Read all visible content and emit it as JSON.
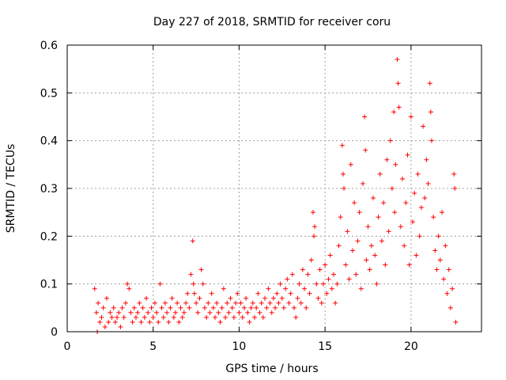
{
  "chart_data": {
    "type": "scatter",
    "title": "Day 227 of 2018, SRMTID for receiver coru",
    "xlabel": "GPS time / hours",
    "ylabel": "SRMTID / TECUs",
    "xlim": [
      0,
      24.1
    ],
    "ylim": [
      0,
      0.6
    ],
    "x_ticks": [
      0,
      5,
      10,
      15,
      20
    ],
    "x_tick_labels": [
      "0",
      "5",
      "10",
      "15",
      "20"
    ],
    "y_ticks": [
      0,
      0.1,
      0.2,
      0.3,
      0.4,
      0.5,
      0.6
    ],
    "y_tick_labels": [
      "0",
      "0.1",
      "0.2",
      "0.3",
      "0.4",
      "0.5",
      "0.6"
    ],
    "grid": true,
    "marker": "+",
    "series_color": "#ff0000",
    "x_range_of_data_hours": [
      1.6,
      22.7
    ],
    "envelope_description": "SRMTID rises from ~0.02–0.08 TECU before 13 h to 0.1–0.58 TECU after 15 h",
    "series": [
      {
        "name": "coru",
        "points": [
          [
            1.6,
            0.09
          ],
          [
            1.7,
            0.04
          ],
          [
            1.75,
            0.0
          ],
          [
            1.8,
            0.06
          ],
          [
            1.9,
            0.02
          ],
          [
            2.0,
            0.03
          ],
          [
            2.1,
            0.05
          ],
          [
            2.2,
            0.01
          ],
          [
            2.3,
            0.07
          ],
          [
            2.4,
            0.02
          ],
          [
            2.5,
            0.04
          ],
          [
            2.6,
            0.03
          ],
          [
            2.7,
            0.05
          ],
          [
            2.8,
            0.02
          ],
          [
            2.9,
            0.03
          ],
          [
            3.0,
            0.04
          ],
          [
            3.1,
            0.01
          ],
          [
            3.2,
            0.05
          ],
          [
            3.3,
            0.03
          ],
          [
            3.4,
            0.06
          ],
          [
            3.5,
            0.1
          ],
          [
            3.6,
            0.09
          ],
          [
            3.7,
            0.04
          ],
          [
            3.8,
            0.02
          ],
          [
            3.9,
            0.05
          ],
          [
            4.0,
            0.03
          ],
          [
            4.1,
            0.04
          ],
          [
            4.2,
            0.06
          ],
          [
            4.3,
            0.02
          ],
          [
            4.4,
            0.05
          ],
          [
            4.5,
            0.03
          ],
          [
            4.6,
            0.07
          ],
          [
            4.7,
            0.04
          ],
          [
            4.8,
            0.02
          ],
          [
            4.9,
            0.05
          ],
          [
            5.0,
            0.03
          ],
          [
            5.1,
            0.06
          ],
          [
            5.2,
            0.04
          ],
          [
            5.3,
            0.02
          ],
          [
            5.4,
            0.1
          ],
          [
            5.5,
            0.05
          ],
          [
            5.6,
            0.03
          ],
          [
            5.7,
            0.06
          ],
          [
            5.8,
            0.04
          ],
          [
            5.9,
            0.02
          ],
          [
            6.0,
            0.05
          ],
          [
            6.1,
            0.07
          ],
          [
            6.2,
            0.03
          ],
          [
            6.3,
            0.04
          ],
          [
            6.4,
            0.06
          ],
          [
            6.5,
            0.02
          ],
          [
            6.6,
            0.05
          ],
          [
            6.7,
            0.03
          ],
          [
            6.8,
            0.04
          ],
          [
            6.9,
            0.06
          ],
          [
            7.0,
            0.08
          ],
          [
            7.1,
            0.05
          ],
          [
            7.2,
            0.12
          ],
          [
            7.3,
            0.19
          ],
          [
            7.35,
            0.1
          ],
          [
            7.4,
            0.08
          ],
          [
            7.5,
            0.06
          ],
          [
            7.6,
            0.04
          ],
          [
            7.7,
            0.07
          ],
          [
            7.8,
            0.13
          ],
          [
            7.9,
            0.1
          ],
          [
            8.0,
            0.05
          ],
          [
            8.1,
            0.03
          ],
          [
            8.2,
            0.06
          ],
          [
            8.3,
            0.04
          ],
          [
            8.4,
            0.08
          ],
          [
            8.5,
            0.05
          ],
          [
            8.6,
            0.03
          ],
          [
            8.7,
            0.06
          ],
          [
            8.8,
            0.04
          ],
          [
            8.9,
            0.02
          ],
          [
            9.0,
            0.05
          ],
          [
            9.1,
            0.09
          ],
          [
            9.2,
            0.03
          ],
          [
            9.3,
            0.06
          ],
          [
            9.4,
            0.04
          ],
          [
            9.5,
            0.07
          ],
          [
            9.6,
            0.05
          ],
          [
            9.7,
            0.03
          ],
          [
            9.8,
            0.06
          ],
          [
            9.9,
            0.08
          ],
          [
            10.0,
            0.04
          ],
          [
            10.1,
            0.06
          ],
          [
            10.2,
            0.03
          ],
          [
            10.3,
            0.05
          ],
          [
            10.4,
            0.07
          ],
          [
            10.5,
            0.04
          ],
          [
            10.6,
            0.02
          ],
          [
            10.7,
            0.05
          ],
          [
            10.8,
            0.06
          ],
          [
            10.9,
            0.03
          ],
          [
            11.0,
            0.05
          ],
          [
            11.1,
            0.08
          ],
          [
            11.2,
            0.04
          ],
          [
            11.3,
            0.06
          ],
          [
            11.4,
            0.03
          ],
          [
            11.5,
            0.07
          ],
          [
            11.6,
            0.05
          ],
          [
            11.7,
            0.09
          ],
          [
            11.8,
            0.06
          ],
          [
            11.9,
            0.04
          ],
          [
            12.0,
            0.07
          ],
          [
            12.1,
            0.05
          ],
          [
            12.2,
            0.08
          ],
          [
            12.3,
            0.06
          ],
          [
            12.4,
            0.1
          ],
          [
            12.5,
            0.07
          ],
          [
            12.6,
            0.05
          ],
          [
            12.7,
            0.09
          ],
          [
            12.8,
            0.11
          ],
          [
            12.9,
            0.06
          ],
          [
            13.0,
            0.08
          ],
          [
            13.1,
            0.12
          ],
          [
            13.2,
            0.05
          ],
          [
            13.3,
            0.03
          ],
          [
            13.4,
            0.07
          ],
          [
            13.5,
            0.1
          ],
          [
            13.6,
            0.06
          ],
          [
            13.7,
            0.13
          ],
          [
            13.8,
            0.09
          ],
          [
            13.9,
            0.05
          ],
          [
            14.0,
            0.12
          ],
          [
            14.1,
            0.08
          ],
          [
            14.2,
            0.15
          ],
          [
            14.3,
            0.25
          ],
          [
            14.35,
            0.2
          ],
          [
            14.4,
            0.22
          ],
          [
            14.5,
            0.1
          ],
          [
            14.6,
            0.07
          ],
          [
            14.7,
            0.13
          ],
          [
            14.8,
            0.06
          ],
          [
            14.9,
            0.1
          ],
          [
            15.0,
            0.14
          ],
          [
            15.1,
            0.08
          ],
          [
            15.2,
            0.11
          ],
          [
            15.3,
            0.16
          ],
          [
            15.4,
            0.09
          ],
          [
            15.5,
            0.12
          ],
          [
            15.6,
            0.06
          ],
          [
            15.7,
            0.1
          ],
          [
            15.8,
            0.18
          ],
          [
            15.9,
            0.24
          ],
          [
            16.0,
            0.39
          ],
          [
            16.05,
            0.33
          ],
          [
            16.1,
            0.3
          ],
          [
            16.2,
            0.14
          ],
          [
            16.3,
            0.21
          ],
          [
            16.4,
            0.11
          ],
          [
            16.5,
            0.35
          ],
          [
            16.6,
            0.17
          ],
          [
            16.7,
            0.27
          ],
          [
            16.8,
            0.12
          ],
          [
            16.9,
            0.19
          ],
          [
            17.0,
            0.25
          ],
          [
            17.1,
            0.09
          ],
          [
            17.2,
            0.31
          ],
          [
            17.3,
            0.45
          ],
          [
            17.35,
            0.38
          ],
          [
            17.4,
            0.15
          ],
          [
            17.5,
            0.22
          ],
          [
            17.6,
            0.13
          ],
          [
            17.7,
            0.18
          ],
          [
            17.8,
            0.28
          ],
          [
            17.9,
            0.16
          ],
          [
            18.0,
            0.1
          ],
          [
            18.1,
            0.24
          ],
          [
            18.2,
            0.33
          ],
          [
            18.3,
            0.19
          ],
          [
            18.4,
            0.27
          ],
          [
            18.5,
            0.14
          ],
          [
            18.6,
            0.36
          ],
          [
            18.7,
            0.21
          ],
          [
            18.8,
            0.4
          ],
          [
            18.9,
            0.3
          ],
          [
            19.0,
            0.46
          ],
          [
            19.05,
            0.25
          ],
          [
            19.1,
            0.35
          ],
          [
            19.2,
            0.57
          ],
          [
            19.25,
            0.52
          ],
          [
            19.3,
            0.47
          ],
          [
            19.4,
            0.22
          ],
          [
            19.5,
            0.32
          ],
          [
            19.6,
            0.18
          ],
          [
            19.7,
            0.27
          ],
          [
            19.8,
            0.37
          ],
          [
            19.9,
            0.14
          ],
          [
            20.0,
            0.45
          ],
          [
            20.1,
            0.23
          ],
          [
            20.2,
            0.29
          ],
          [
            20.3,
            0.16
          ],
          [
            20.4,
            0.33
          ],
          [
            20.5,
            0.2
          ],
          [
            20.6,
            0.26
          ],
          [
            20.7,
            0.43
          ],
          [
            20.8,
            0.28
          ],
          [
            20.9,
            0.36
          ],
          [
            21.0,
            0.31
          ],
          [
            21.1,
            0.52
          ],
          [
            21.15,
            0.46
          ],
          [
            21.2,
            0.4
          ],
          [
            21.3,
            0.24
          ],
          [
            21.4,
            0.17
          ],
          [
            21.5,
            0.13
          ],
          [
            21.6,
            0.2
          ],
          [
            21.7,
            0.15
          ],
          [
            21.8,
            0.25
          ],
          [
            21.9,
            0.11
          ],
          [
            22.0,
            0.18
          ],
          [
            22.1,
            0.08
          ],
          [
            22.2,
            0.13
          ],
          [
            22.3,
            0.05
          ],
          [
            22.4,
            0.09
          ],
          [
            22.5,
            0.33
          ],
          [
            22.55,
            0.3
          ],
          [
            22.6,
            0.02
          ]
        ]
      }
    ]
  }
}
